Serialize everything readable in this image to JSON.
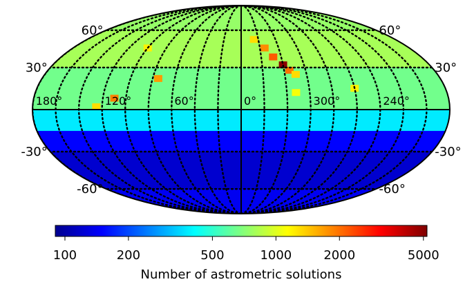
{
  "chart_data": {
    "type": "heatmap",
    "projection": "mollweide",
    "title": "",
    "longitude_labels": [
      "180°",
      "120°",
      "60°",
      "0°",
      "300°",
      "240°"
    ],
    "latitude_labels_left": [
      "60°",
      "30°",
      "-30°",
      "-60°"
    ],
    "latitude_labels_right": [
      "60°",
      "30°",
      "-30°",
      "-60°"
    ],
    "colorbar": {
      "label": "Number of astrometric solutions",
      "scale": "log",
      "range": [
        90,
        5200
      ],
      "ticks": [
        100,
        200,
        500,
        1000,
        2000,
        5000
      ],
      "tick_labels": [
        "100",
        "200",
        "500",
        "1000",
        "2000",
        "5000"
      ],
      "colormap": "jet"
    },
    "bands": [
      {
        "lat_range": [
          60,
          90
        ],
        "value": 750
      },
      {
        "lat_range": [
          30,
          60
        ],
        "value": 800
      },
      {
        "lat_range": [
          0,
          30
        ],
        "value": 650
      },
      {
        "lat_range": [
          -15,
          0
        ],
        "value": 380
      },
      {
        "lat_range": [
          -30,
          -15
        ],
        "value": 150
      },
      {
        "lat_range": [
          -60,
          -30
        ],
        "value": 120
      },
      {
        "lat_range": [
          -90,
          -60
        ],
        "value": 140
      }
    ],
    "hotspots": [
      {
        "lon": 345,
        "lat": 52,
        "value": 1300
      },
      {
        "lon": 335,
        "lat": 45,
        "value": 1800
      },
      {
        "lon": 328,
        "lat": 38,
        "value": 2200
      },
      {
        "lon": 320,
        "lat": 32,
        "value": 5000
      },
      {
        "lon": 315,
        "lat": 28,
        "value": 2000
      },
      {
        "lon": 310,
        "lat": 25,
        "value": 1300
      },
      {
        "lon": 100,
        "lat": 45,
        "value": 1200
      },
      {
        "lon": 75,
        "lat": 22,
        "value": 1700
      },
      {
        "lon": 110,
        "lat": 8,
        "value": 1900
      },
      {
        "lon": 125,
        "lat": 2,
        "value": 1300
      },
      {
        "lon": 260,
        "lat": 15,
        "value": 1200
      },
      {
        "lon": 312,
        "lat": 12,
        "value": 1100
      }
    ],
    "grid": true,
    "colors": {
      "low": "#00008f",
      "mid": "#7fff7f",
      "high": "#800000",
      "grid": "#000000"
    }
  }
}
